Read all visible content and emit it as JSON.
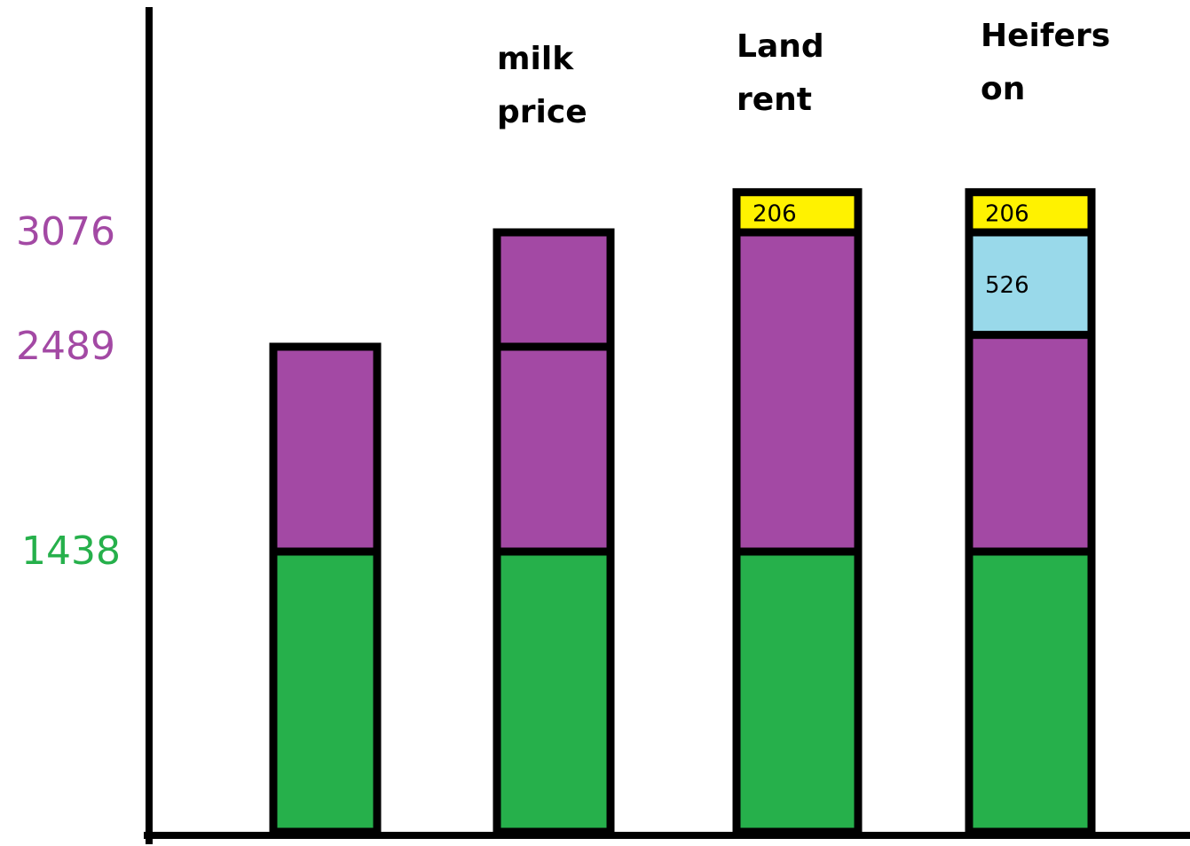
{
  "colors": {
    "base": "#26b04b",
    "purple": "#a349a4",
    "light_blue": "#99d9ea",
    "yellow": "#fff200",
    "tick_purple": "#a349a4",
    "tick_green": "#26b04b",
    "axis": "#000000"
  },
  "chart_data": {
    "type": "bar",
    "stacked": true,
    "title": "",
    "xlabel": "",
    "ylabel": "",
    "ylim": [
      0,
      3300
    ],
    "grid": false,
    "y_ticks": [
      {
        "value": 3076,
        "label": "3076",
        "color": "tick_purple"
      },
      {
        "value": 2489,
        "label": "2489",
        "color": "tick_purple"
      },
      {
        "value": 1438,
        "label": "1438",
        "color": "tick_green"
      }
    ],
    "categories": [
      {
        "label_lines": []
      },
      {
        "label_lines": [
          "milk",
          "price"
        ]
      },
      {
        "label_lines": [
          "Land",
          "rent"
        ]
      },
      {
        "label_lines": [
          "Heifers",
          "on"
        ]
      }
    ],
    "bars": [
      {
        "segments": [
          {
            "value": 1438,
            "color": "base",
            "label": ""
          },
          {
            "value": 1051,
            "color": "purple",
            "label": ""
          }
        ]
      },
      {
        "segments": [
          {
            "value": 1438,
            "color": "base",
            "label": ""
          },
          {
            "value": 1051,
            "color": "purple",
            "label": ""
          },
          {
            "value": 587,
            "color": "purple",
            "label": ""
          }
        ]
      },
      {
        "segments": [
          {
            "value": 1438,
            "color": "base",
            "label": ""
          },
          {
            "value": 1638,
            "color": "purple",
            "label": ""
          },
          {
            "value": 206,
            "color": "yellow",
            "label": "206"
          }
        ]
      },
      {
        "segments": [
          {
            "value": 1438,
            "color": "base",
            "label": ""
          },
          {
            "value": 1112,
            "color": "purple",
            "label": ""
          },
          {
            "value": 526,
            "color": "light_blue",
            "label": "526"
          },
          {
            "value": 206,
            "color": "yellow",
            "label": "206"
          }
        ]
      }
    ]
  }
}
